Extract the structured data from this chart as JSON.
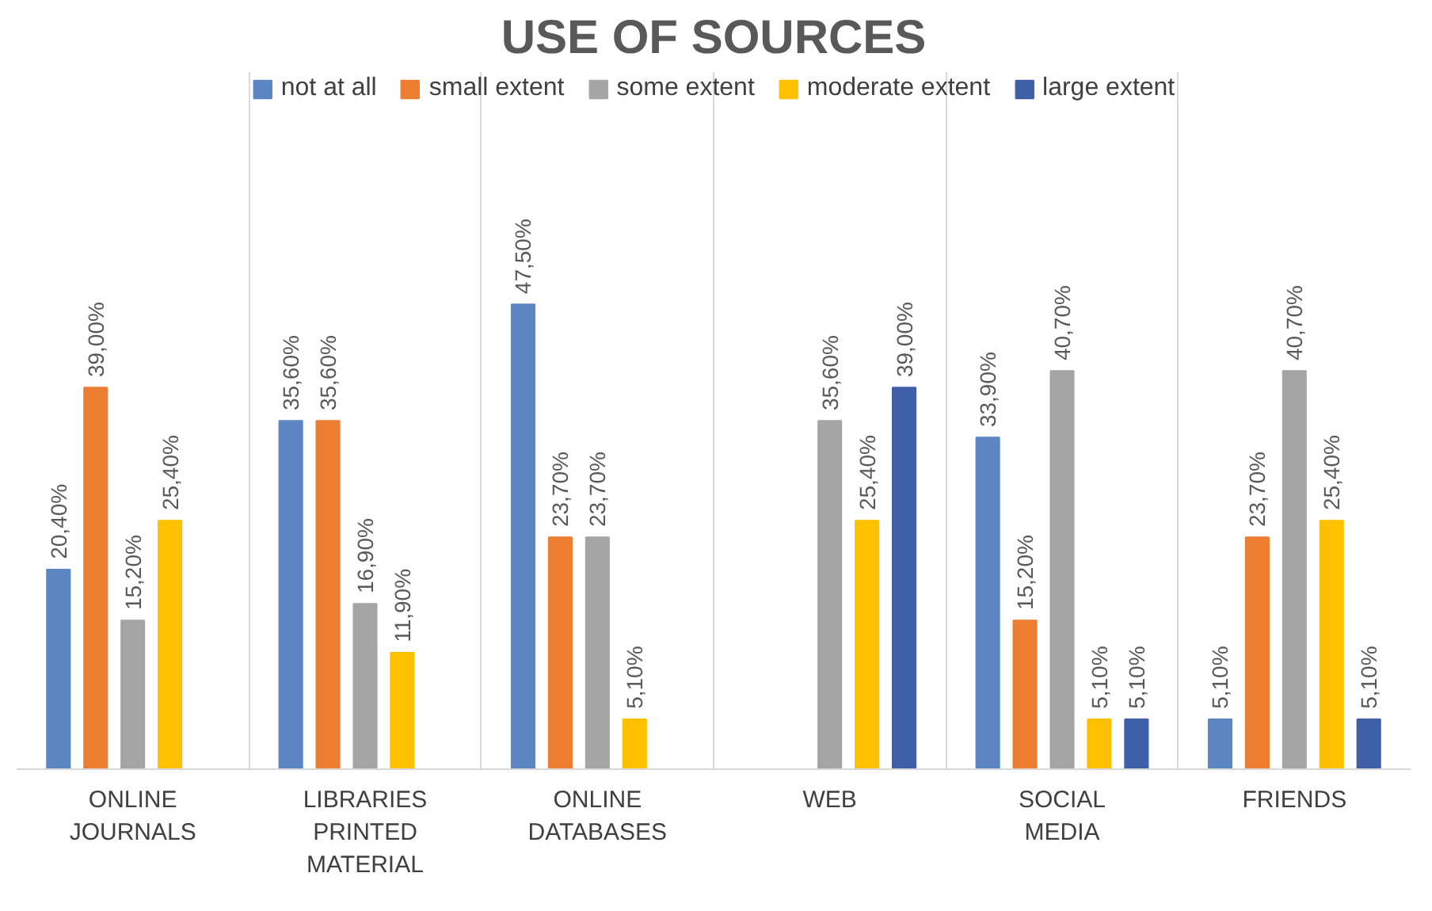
{
  "chart_data": {
    "type": "bar",
    "title": "USE OF SOURCES",
    "categories": [
      "ONLINE JOURNALS",
      "LIBRARIES PRINTED MATERIAL",
      "ONLINE DATABASES",
      "WEB",
      "SOCIAL MEDIA",
      "FRIENDS"
    ],
    "series": [
      {
        "name": "not at all",
        "color": "#5b86c2",
        "values": [
          20.4,
          35.6,
          47.5,
          null,
          33.9,
          5.1
        ],
        "value_labels": [
          "20,40%",
          "35,60%",
          "47,50%",
          null,
          "33,90%",
          "5,10%"
        ]
      },
      {
        "name": "small extent",
        "color": "#ed7d31",
        "values": [
          39.0,
          35.6,
          23.7,
          null,
          15.2,
          23.7
        ],
        "value_labels": [
          "39,00%",
          "35,60%",
          "23,70%",
          null,
          "15,20%",
          "23,70%"
        ]
      },
      {
        "name": "some extent",
        "color": "#a5a5a5",
        "values": [
          15.2,
          16.9,
          23.7,
          35.6,
          40.7,
          40.7
        ],
        "value_labels": [
          "15,20%",
          "16,90%",
          "23,70%",
          "35,60%",
          "40,70%",
          "40,70%"
        ]
      },
      {
        "name": "moderate extent",
        "color": "#ffc000",
        "values": [
          25.4,
          11.9,
          5.1,
          25.4,
          5.1,
          25.4
        ],
        "value_labels": [
          "25,40%",
          "11,90%",
          "5,10%",
          "25,40%",
          "5,10%",
          "25,40%"
        ]
      },
      {
        "name": "large extent",
        "color": "#3f5fa8",
        "values": [
          null,
          null,
          null,
          39.0,
          5.1,
          5.1
        ],
        "value_labels": [
          null,
          null,
          null,
          "39,00%",
          "5,10%",
          "5,10%"
        ]
      }
    ],
    "grid": "x",
    "legend": "top"
  }
}
